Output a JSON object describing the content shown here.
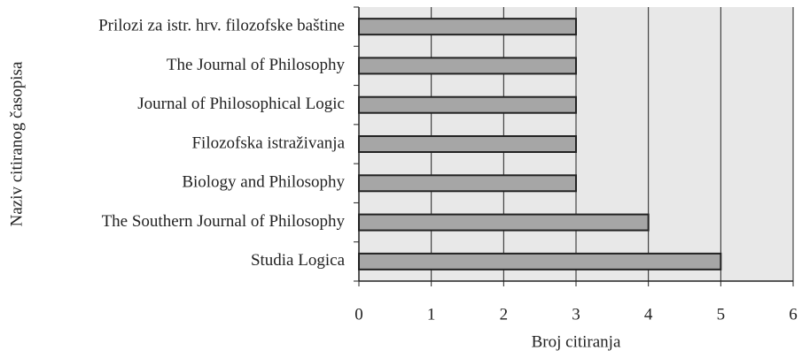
{
  "chart_data": {
    "type": "bar",
    "orientation": "horizontal",
    "x_label": "Broj citiranja",
    "y_label": "Naziv citiranog časopisa",
    "categories": [
      "Prilozi za istr. hrv. filozofske baštine",
      "The Journal of Philosophy",
      "Journal of Philosophical Logic",
      "Filozofska istraživanja",
      "Biology and Philosophy",
      "The Southern Journal of Philosophy",
      "Studia Logica"
    ],
    "values": [
      3,
      3,
      3,
      3,
      3,
      4,
      5
    ],
    "color": "#a6a6a6",
    "xlim": [
      0,
      6
    ],
    "xticks": [
      0,
      1,
      2,
      3,
      4,
      5,
      6
    ],
    "grid": true
  }
}
